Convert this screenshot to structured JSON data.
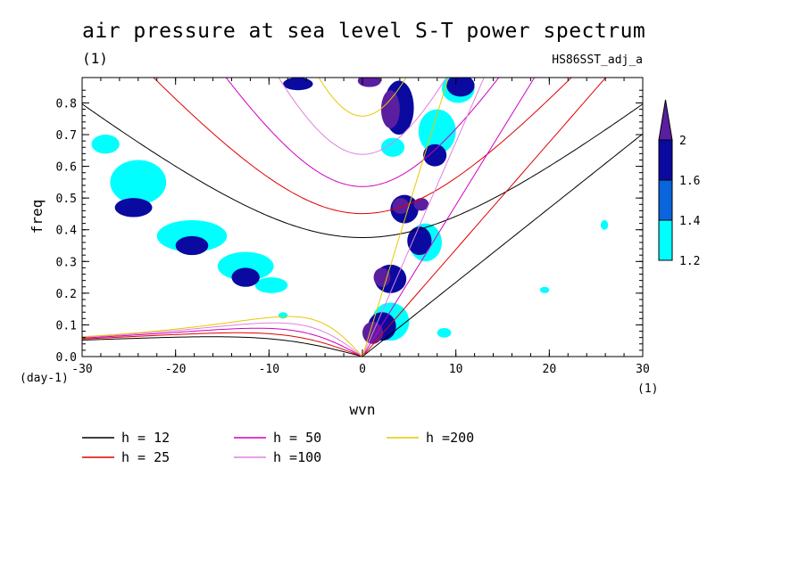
{
  "chart_data": {
    "type": "contour",
    "title": "air pressure at sea level S-T power spectrum",
    "subtitle": "(1)",
    "run_label": "HS86SST_adj_a",
    "xlabel": "wvn",
    "ylabel": "freq",
    "x_unit": "(1)",
    "y_unit": "(day-1)",
    "xlim": [
      -30,
      30
    ],
    "ylim": [
      0,
      0.88
    ],
    "x_ticks": [
      -30,
      -20,
      -10,
      0,
      10,
      20,
      30
    ],
    "y_ticks": [
      0.0,
      0.1,
      0.2,
      0.3,
      0.4,
      0.5,
      0.6,
      0.7,
      0.8
    ],
    "x_tick_labels": [
      "-30",
      "-20",
      "-10",
      "0",
      "10",
      "20",
      "30"
    ],
    "y_tick_labels": [
      "0.0",
      "0.1",
      "0.2",
      "0.3",
      "0.4",
      "0.5",
      "0.6",
      "0.7",
      "0.8"
    ],
    "colorbar": {
      "levels": [
        1.2,
        1.4,
        1.6,
        2
      ],
      "labels": [
        "1.2",
        "1.4",
        "1.6",
        "2"
      ],
      "colors": [
        "#00ffff",
        "#0a64dc",
        "#0a0aa0",
        "#5a1ea0"
      ]
    },
    "dispersion_curves": [
      {
        "name": "h = 12",
        "h": 12,
        "color": "#000000"
      },
      {
        "name": "h = 25",
        "h": 25,
        "color": "#e00000"
      },
      {
        "name": "h = 50",
        "h": 50,
        "color": "#d000c0"
      },
      {
        "name": "h =100",
        "h": 100,
        "color": "#e080e0"
      },
      {
        "name": "h =200",
        "h": 200,
        "color": "#e8c800"
      }
    ],
    "shaded_regions": [
      {
        "level": 2,
        "x": 0.0,
        "y": 0.04,
        "w": 2.2,
        "h": 0.07
      },
      {
        "level": 2,
        "x": 2.0,
        "y": 0.72,
        "w": 2.0,
        "h": 0.12
      },
      {
        "level": 2,
        "x": 1.2,
        "y": 0.22,
        "w": 1.8,
        "h": 0.06
      },
      {
        "level": 2,
        "x": 3.2,
        "y": 0.45,
        "w": 1.8,
        "h": 0.05
      },
      {
        "level": 2,
        "x": 5.5,
        "y": 0.46,
        "w": 1.6,
        "h": 0.04
      },
      {
        "level": 2,
        "x": -0.5,
        "y": 0.85,
        "w": 2.5,
        "h": 0.04
      },
      {
        "level": 1.6,
        "x": 0.6,
        "y": 0.05,
        "w": 3.0,
        "h": 0.09
      },
      {
        "level": 1.6,
        "x": 2.3,
        "y": 0.7,
        "w": 3.2,
        "h": 0.17
      },
      {
        "level": 1.6,
        "x": 1.3,
        "y": 0.2,
        "w": 3.4,
        "h": 0.09
      },
      {
        "level": 1.6,
        "x": 3.0,
        "y": 0.42,
        "w": 3.0,
        "h": 0.09
      },
      {
        "level": 1.6,
        "x": 4.8,
        "y": 0.32,
        "w": 2.6,
        "h": 0.09
      },
      {
        "level": 1.6,
        "x": 6.5,
        "y": 0.6,
        "w": 2.5,
        "h": 0.07
      },
      {
        "level": 1.6,
        "x": 9.0,
        "y": 0.82,
        "w": 3.0,
        "h": 0.07
      },
      {
        "level": 1.6,
        "x": -8.5,
        "y": 0.84,
        "w": 3.2,
        "h": 0.04
      },
      {
        "level": 1.6,
        "x": -26.5,
        "y": 0.44,
        "w": 4.0,
        "h": 0.06
      },
      {
        "level": 1.6,
        "x": -20.0,
        "y": 0.32,
        "w": 3.5,
        "h": 0.06
      },
      {
        "level": 1.6,
        "x": -14.0,
        "y": 0.22,
        "w": 3.0,
        "h": 0.06
      },
      {
        "level": 1.2,
        "x": -27.0,
        "y": 0.48,
        "w": 6.0,
        "h": 0.14
      },
      {
        "level": 1.2,
        "x": -22.0,
        "y": 0.33,
        "w": 7.5,
        "h": 0.1
      },
      {
        "level": 1.2,
        "x": -15.5,
        "y": 0.24,
        "w": 6.0,
        "h": 0.09
      },
      {
        "level": 1.2,
        "x": -11.5,
        "y": 0.2,
        "w": 3.5,
        "h": 0.05
      },
      {
        "level": 1.2,
        "x": -29.0,
        "y": 0.64,
        "w": 3.0,
        "h": 0.06
      },
      {
        "level": 1.2,
        "x": 6.0,
        "y": 0.64,
        "w": 4.0,
        "h": 0.14
      },
      {
        "level": 1.2,
        "x": 5.0,
        "y": 0.3,
        "w": 3.5,
        "h": 0.12
      },
      {
        "level": 1.2,
        "x": 8.5,
        "y": 0.8,
        "w": 3.5,
        "h": 0.09
      },
      {
        "level": 1.2,
        "x": 1.0,
        "y": 0.05,
        "w": 4.0,
        "h": 0.12
      },
      {
        "level": 1.2,
        "x": 2.0,
        "y": 0.63,
        "w": 2.5,
        "h": 0.06
      },
      {
        "level": 1.2,
        "x": 8.0,
        "y": 0.06,
        "w": 1.5,
        "h": 0.03
      },
      {
        "level": 1.2,
        "x": 25.5,
        "y": 0.4,
        "w": 0.8,
        "h": 0.03
      },
      {
        "level": 1.2,
        "x": 19.0,
        "y": 0.2,
        "w": 1.0,
        "h": 0.02
      },
      {
        "level": 1.2,
        "x": -9.0,
        "y": 0.12,
        "w": 1.0,
        "h": 0.02
      }
    ]
  },
  "legend": [
    {
      "label": "h = 12",
      "color": "#000000"
    },
    {
      "label": "h = 25",
      "color": "#e00000"
    },
    {
      "label": "h = 50",
      "color": "#d000c0"
    },
    {
      "label": "h =100",
      "color": "#e080e0"
    },
    {
      "label": "h =200",
      "color": "#e8c800"
    }
  ]
}
